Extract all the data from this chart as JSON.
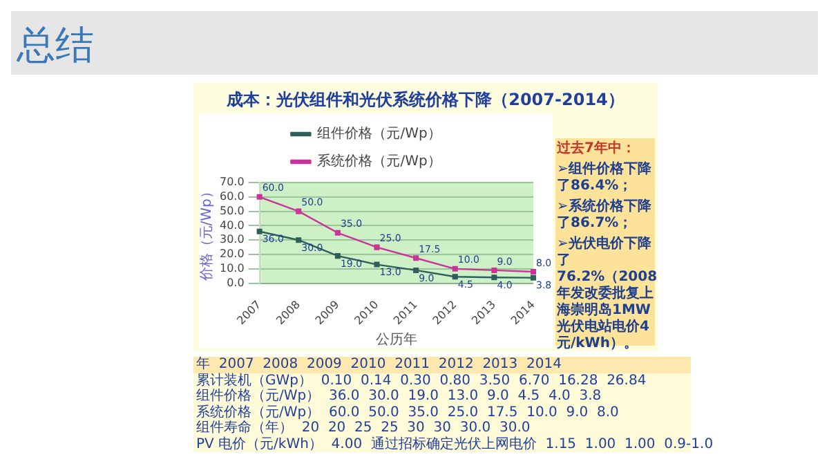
{
  "chart_data": {
    "type": "line",
    "title": "成本：光伏组件和光伏系统价格下降（2007-2014）",
    "xlabel": "公历年",
    "ylabel": "价格（元/Wp）",
    "categories": [
      "2007",
      "2008",
      "2009",
      "2010",
      "2011",
      "2012",
      "2013",
      "2014"
    ],
    "series": [
      {
        "name": "组件价格（元/Wp）",
        "color": "#2e5f5a",
        "values": [
          36.0,
          30.0,
          19.0,
          13.0,
          9.0,
          4.5,
          4.0,
          3.8
        ],
        "value_labels": [
          "36.0",
          "30.0",
          "19.0",
          "13.0",
          "9.0",
          "4.5",
          "4.0",
          "3.8"
        ]
      },
      {
        "name": "系统价格（元/Wp）",
        "color": "#cc3399",
        "values": [
          60.0,
          50.0,
          35.0,
          25.0,
          17.5,
          10.0,
          9.0,
          8.0
        ],
        "value_labels": [
          "60.0",
          "50.0",
          "35.0",
          "25.0",
          "17.5",
          "10.0",
          "9.0",
          "8.0"
        ]
      }
    ],
    "ylim": [
      0,
      70
    ],
    "yticks": [
      {
        "value": 0,
        "label": "0.0"
      },
      {
        "value": 10,
        "label": "10.0"
      },
      {
        "value": 20,
        "label": "20.0"
      },
      {
        "value": 30,
        "label": "30.0"
      },
      {
        "value": 40,
        "label": "40.0"
      },
      {
        "value": 50,
        "label": "50.0"
      },
      {
        "value": 60,
        "label": "60.0"
      },
      {
        "value": 70,
        "label": "70.0"
      }
    ],
    "grid": "y",
    "legend": "top",
    "marker": "square",
    "line_style": "solid",
    "annotations": [
      "总结",
      "过去7年中：",
      "➢组件价格下降了86.4%；",
      "➢系统价格下降了86.7%；",
      "➢光伏电价下降了76.2%（2008年发改委批复上海崇明岛1MW光伏电站电价4元/kWh）。",
      "年  2007  2008  2009  2010  2011  2012  2013  2014",
      "累计装机（GWp）  0.10  0.14  0.30  0.80  3.50  6.70  16.28  26.84",
      "组件价格（元/Wp）  36.0  30.0  19.0  13.0  9.0  4.5  4.0  3.8",
      "系统价格（元/Wp）  60.0  50.0  35.0  25.0  17.5  10.0  9.0  8.0",
      "组件寿命（年）  20  20  25  25  30  30  30.0  30.0",
      "PV 电价（元/kWh）  4.00  通过招标确定光伏上网电价  1.15  1.00  1.00  0.9-1.0"
    ]
  }
}
